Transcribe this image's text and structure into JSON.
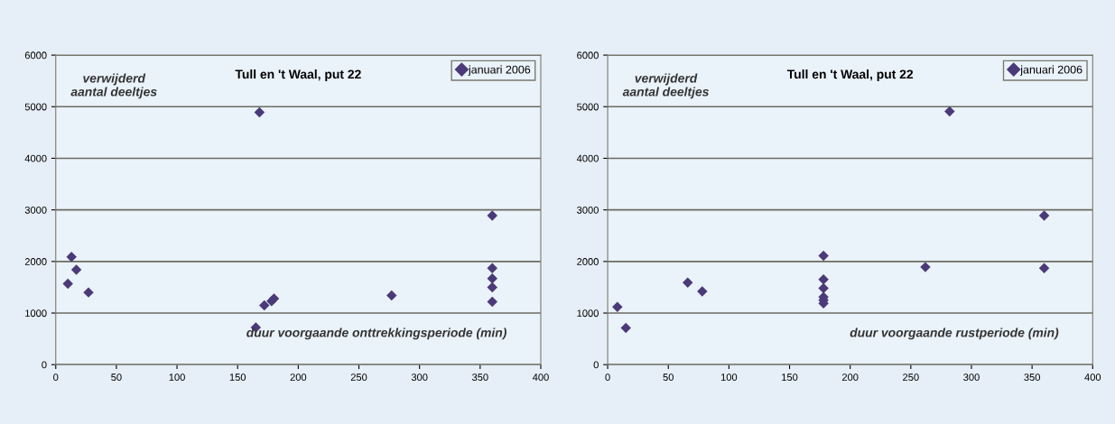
{
  "chart_data": [
    {
      "type": "scatter",
      "title": "Tull en 't Waal, put 22",
      "xlabel": "duur voorgaande onttrekkingsperiode (min)",
      "ylabel": "verwijderd\naantal deeltjes",
      "series": [
        {
          "name": "januari 2006",
          "color": "#4b3a78",
          "x": [
            10,
            13,
            17,
            27,
            165,
            168,
            172,
            178,
            180,
            277,
            360,
            360,
            360,
            360,
            360
          ],
          "values": [
            1570,
            2090,
            1840,
            1400,
            720,
            4890,
            1150,
            1230,
            1280,
            1340,
            2890,
            1870,
            1670,
            1500,
            1220
          ]
        }
      ],
      "xlim": [
        0,
        400
      ],
      "xticks": [
        0,
        50,
        100,
        150,
        200,
        250,
        300,
        350,
        400
      ],
      "ylim": [
        0,
        6000
      ],
      "yticks": [
        0,
        1000,
        2000,
        3000,
        4000,
        5000,
        6000
      ],
      "grid": "y",
      "legend": "top right",
      "marker": "diamond"
    },
    {
      "type": "scatter",
      "title": "Tull en 't Waal, put 22",
      "xlabel": "duur voorgaande rustperiode (min)",
      "ylabel": "verwijderd\naantal deeltjes",
      "series": [
        {
          "name": "januari 2006",
          "color": "#4b3a78",
          "x": [
            8,
            15,
            66,
            78,
            178,
            178,
            178,
            178,
            178,
            178,
            262,
            282,
            360,
            360
          ],
          "values": [
            1120,
            710,
            1590,
            1420,
            2110,
            1650,
            1480,
            1310,
            1250,
            1190,
            1890,
            4910,
            2890,
            1870
          ]
        }
      ],
      "xlim": [
        0,
        400
      ],
      "xticks": [
        0,
        50,
        100,
        150,
        200,
        250,
        300,
        350,
        400
      ],
      "ylim": [
        0,
        6000
      ],
      "yticks": [
        0,
        1000,
        2000,
        3000,
        4000,
        5000,
        6000
      ],
      "grid": "y",
      "legend": "top right",
      "marker": "diamond"
    }
  ]
}
